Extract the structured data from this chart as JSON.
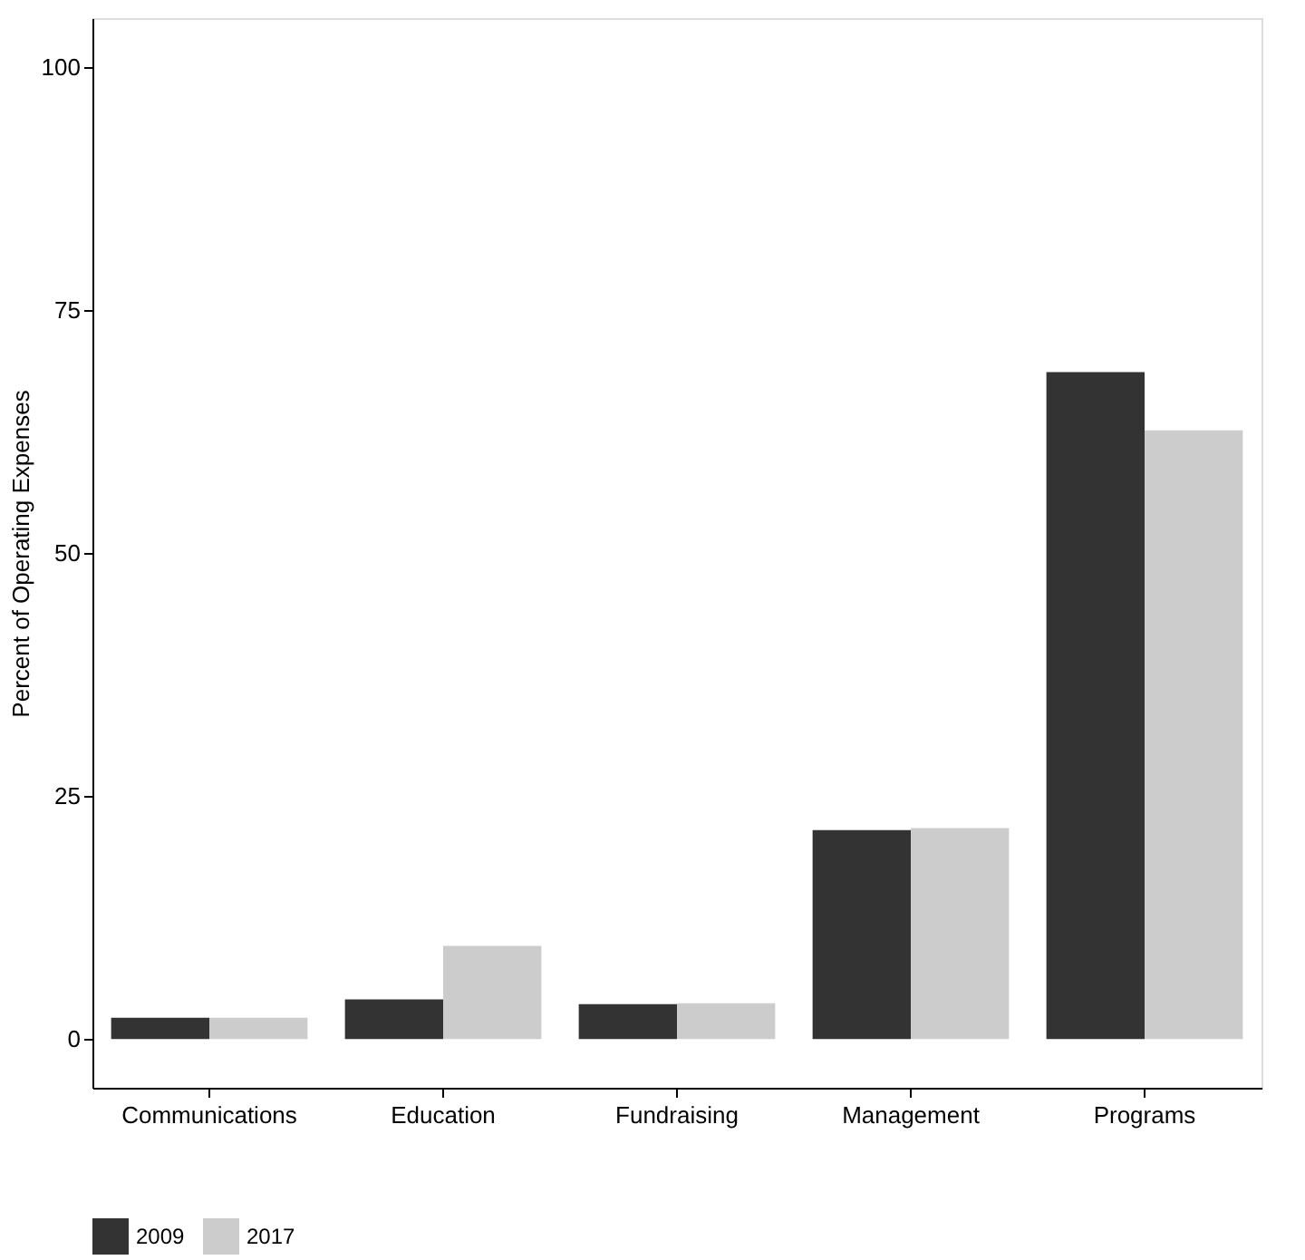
{
  "chart_data": {
    "type": "bar",
    "ylabel": "Percent of Operating Expenses",
    "categories": [
      "Communications",
      "Education",
      "Fundraising",
      "Management",
      "Programs"
    ],
    "series": [
      {
        "name": "2009",
        "color": "#333333",
        "values": [
          2.2,
          4.1,
          3.6,
          21.5,
          68.6
        ]
      },
      {
        "name": "2017",
        "color": "#cccccc",
        "values": [
          2.2,
          9.6,
          3.7,
          21.7,
          62.6
        ]
      }
    ],
    "ylim": [
      -5,
      105
    ],
    "yticks": [
      0,
      25,
      50,
      75,
      100
    ],
    "grid": false,
    "legend": "bottom"
  }
}
